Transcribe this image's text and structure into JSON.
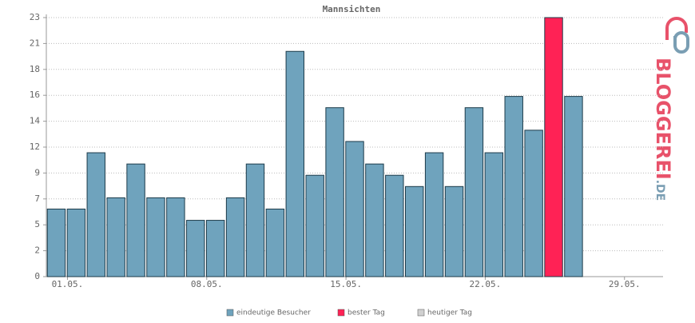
{
  "chart_data": {
    "type": "bar",
    "title": "Mannsichten",
    "categories": [
      "01.05.",
      null,
      null,
      null,
      null,
      null,
      null,
      "08.05.",
      null,
      null,
      null,
      null,
      null,
      null,
      "15.05.",
      null,
      null,
      null,
      null,
      null,
      null,
      "22.05.",
      null,
      null,
      null,
      null,
      null,
      null,
      "29.05.",
      null,
      null
    ],
    "series": [
      {
        "name": "eindeutige Besucher",
        "color": "#6fa3bd",
        "values": [
          6,
          6,
          11,
          7,
          10,
          7,
          7,
          5,
          5,
          7,
          10,
          6,
          20,
          9,
          15,
          12,
          10,
          9,
          8,
          11,
          8,
          15,
          11,
          16,
          13,
          null,
          16,
          null,
          null,
          null,
          null
        ]
      },
      {
        "name": "bester Tag",
        "color": "#ff2255",
        "values": [
          null,
          null,
          null,
          null,
          null,
          null,
          null,
          null,
          null,
          null,
          null,
          null,
          null,
          null,
          null,
          null,
          null,
          null,
          null,
          null,
          null,
          null,
          null,
          null,
          null,
          23,
          null,
          null,
          null,
          null,
          null
        ]
      },
      {
        "name": "heutiger Tag",
        "color": "#d0d0d0",
        "values": [
          null,
          null,
          null,
          null,
          null,
          null,
          null,
          null,
          null,
          null,
          null,
          null,
          null,
          null,
          null,
          null,
          null,
          null,
          null,
          null,
          null,
          null,
          null,
          null,
          null,
          null,
          null,
          null,
          null,
          null,
          null
        ]
      }
    ],
    "ylim": [
      0,
      23
    ],
    "yticks": [
      0,
      {
        "value": 2.3,
        "label": "2"
      },
      {
        "value": 4.6,
        "label": "5"
      },
      {
        "value": 6.9,
        "label": "7"
      },
      {
        "value": 9.2,
        "label": "9"
      },
      {
        "value": 11.5,
        "label": "12"
      },
      {
        "value": 13.8,
        "label": "14"
      },
      {
        "value": 16.1,
        "label": "16"
      },
      {
        "value": 18.4,
        "label": "18"
      },
      {
        "value": 20.7,
        "label": "21"
      },
      23
    ],
    "grid": true,
    "logo": {
      "main": "BLOGGEREI",
      "suffix": ".DE"
    }
  }
}
